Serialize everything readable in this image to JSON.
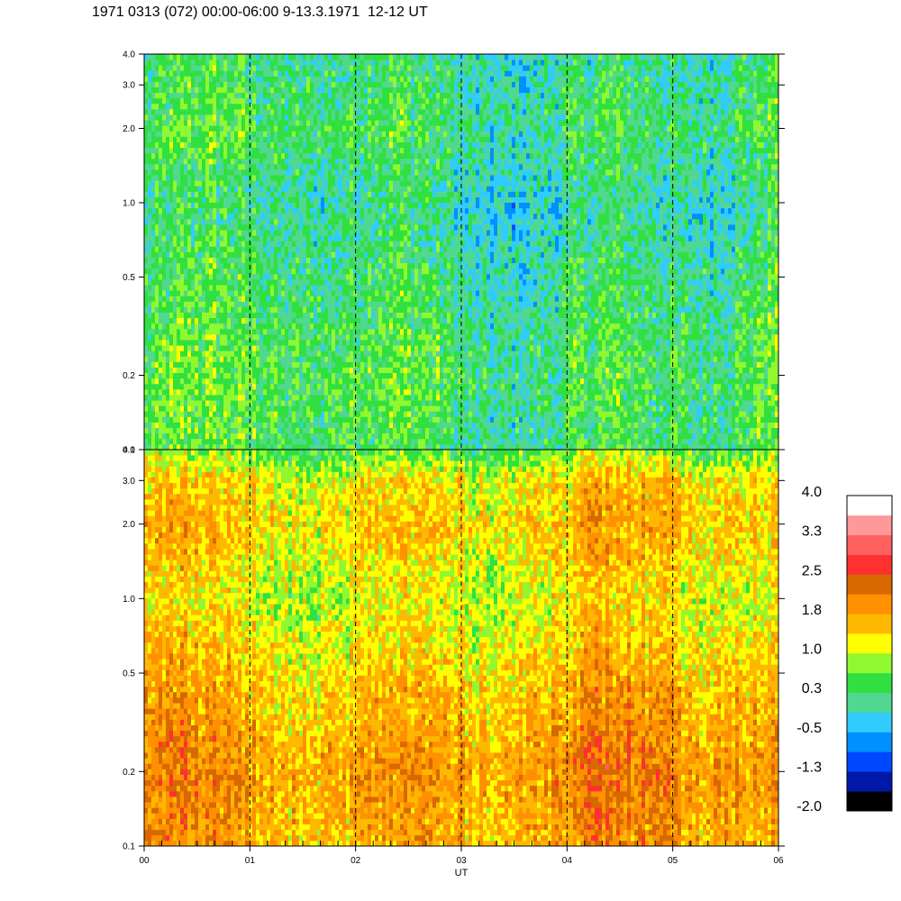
{
  "chart_data": {
    "type": "heatmap",
    "title": "1971 0313 (072) 00:00-06:00 9-13.3.1971  12-12 UT",
    "xlabel": "UT",
    "x_ticks": [
      "00",
      "01",
      "02",
      "03",
      "04",
      "05",
      "06"
    ],
    "x_range": [
      0,
      6
    ],
    "x_minor_step": 0.1666667,
    "hour_markers": [
      1,
      2,
      3,
      4,
      5
    ],
    "panels": [
      {
        "y_scale": "log",
        "y_range": [
          0.1,
          4.0
        ],
        "y_ticks": [
          {
            "value": 0.1,
            "label": "0.1"
          },
          {
            "value": 0.2,
            "label": "0.2"
          },
          {
            "value": 0.5,
            "label": "0.5"
          },
          {
            "value": 1.0,
            "label": "1.0"
          },
          {
            "value": 2.0,
            "label": "2.0"
          },
          {
            "value": 3.0,
            "label": "3.0"
          },
          {
            "value": 4.0,
            "label": "4.0"
          }
        ],
        "level_profile": [
          {
            "y": 0.1,
            "level": 0.3
          },
          {
            "y": 0.2,
            "level": 0.4
          },
          {
            "y": 0.5,
            "level": 0.2
          },
          {
            "y": 1.0,
            "level": 0.0
          },
          {
            "y": 2.0,
            "level": 0.3
          },
          {
            "y": 4.0,
            "level": 0.1
          }
        ]
      },
      {
        "y_scale": "log",
        "y_range": [
          0.1,
          4.0
        ],
        "y_ticks": [
          {
            "value": 0.1,
            "label": "0.1"
          },
          {
            "value": 0.2,
            "label": "0.2"
          },
          {
            "value": 0.5,
            "label": "0.5"
          },
          {
            "value": 1.0,
            "label": "1.0"
          },
          {
            "value": 2.0,
            "label": "2.0"
          },
          {
            "value": 3.0,
            "label": "3.0"
          },
          {
            "value": 4.0,
            "label": "4.0"
          }
        ],
        "level_profile": [
          {
            "y": 0.1,
            "level": 1.7
          },
          {
            "y": 0.2,
            "level": 1.9
          },
          {
            "y": 0.5,
            "level": 1.5
          },
          {
            "y": 1.0,
            "level": 1.1
          },
          {
            "y": 2.0,
            "level": 1.5
          },
          {
            "y": 3.0,
            "level": 1.3
          },
          {
            "y": 4.0,
            "level": 0.6
          }
        ]
      }
    ],
    "colorbar": {
      "labels": [
        "4.0",
        "3.3",
        "2.5",
        "1.8",
        "1.0",
        "0.3",
        "-0.5",
        "-1.3",
        "-2.0"
      ],
      "range": [
        -2.0,
        4.0
      ],
      "colors": [
        "#000000",
        "#0018a8",
        "#0048ff",
        "#0090ff",
        "#30ccff",
        "#50d890",
        "#30e040",
        "#90f830",
        "#ffff00",
        "#ffb800",
        "#ff9000",
        "#d86800",
        "#ff3030",
        "#ff6060",
        "#ff9898",
        "#ffffff"
      ]
    },
    "grid": false,
    "legend": "right"
  }
}
